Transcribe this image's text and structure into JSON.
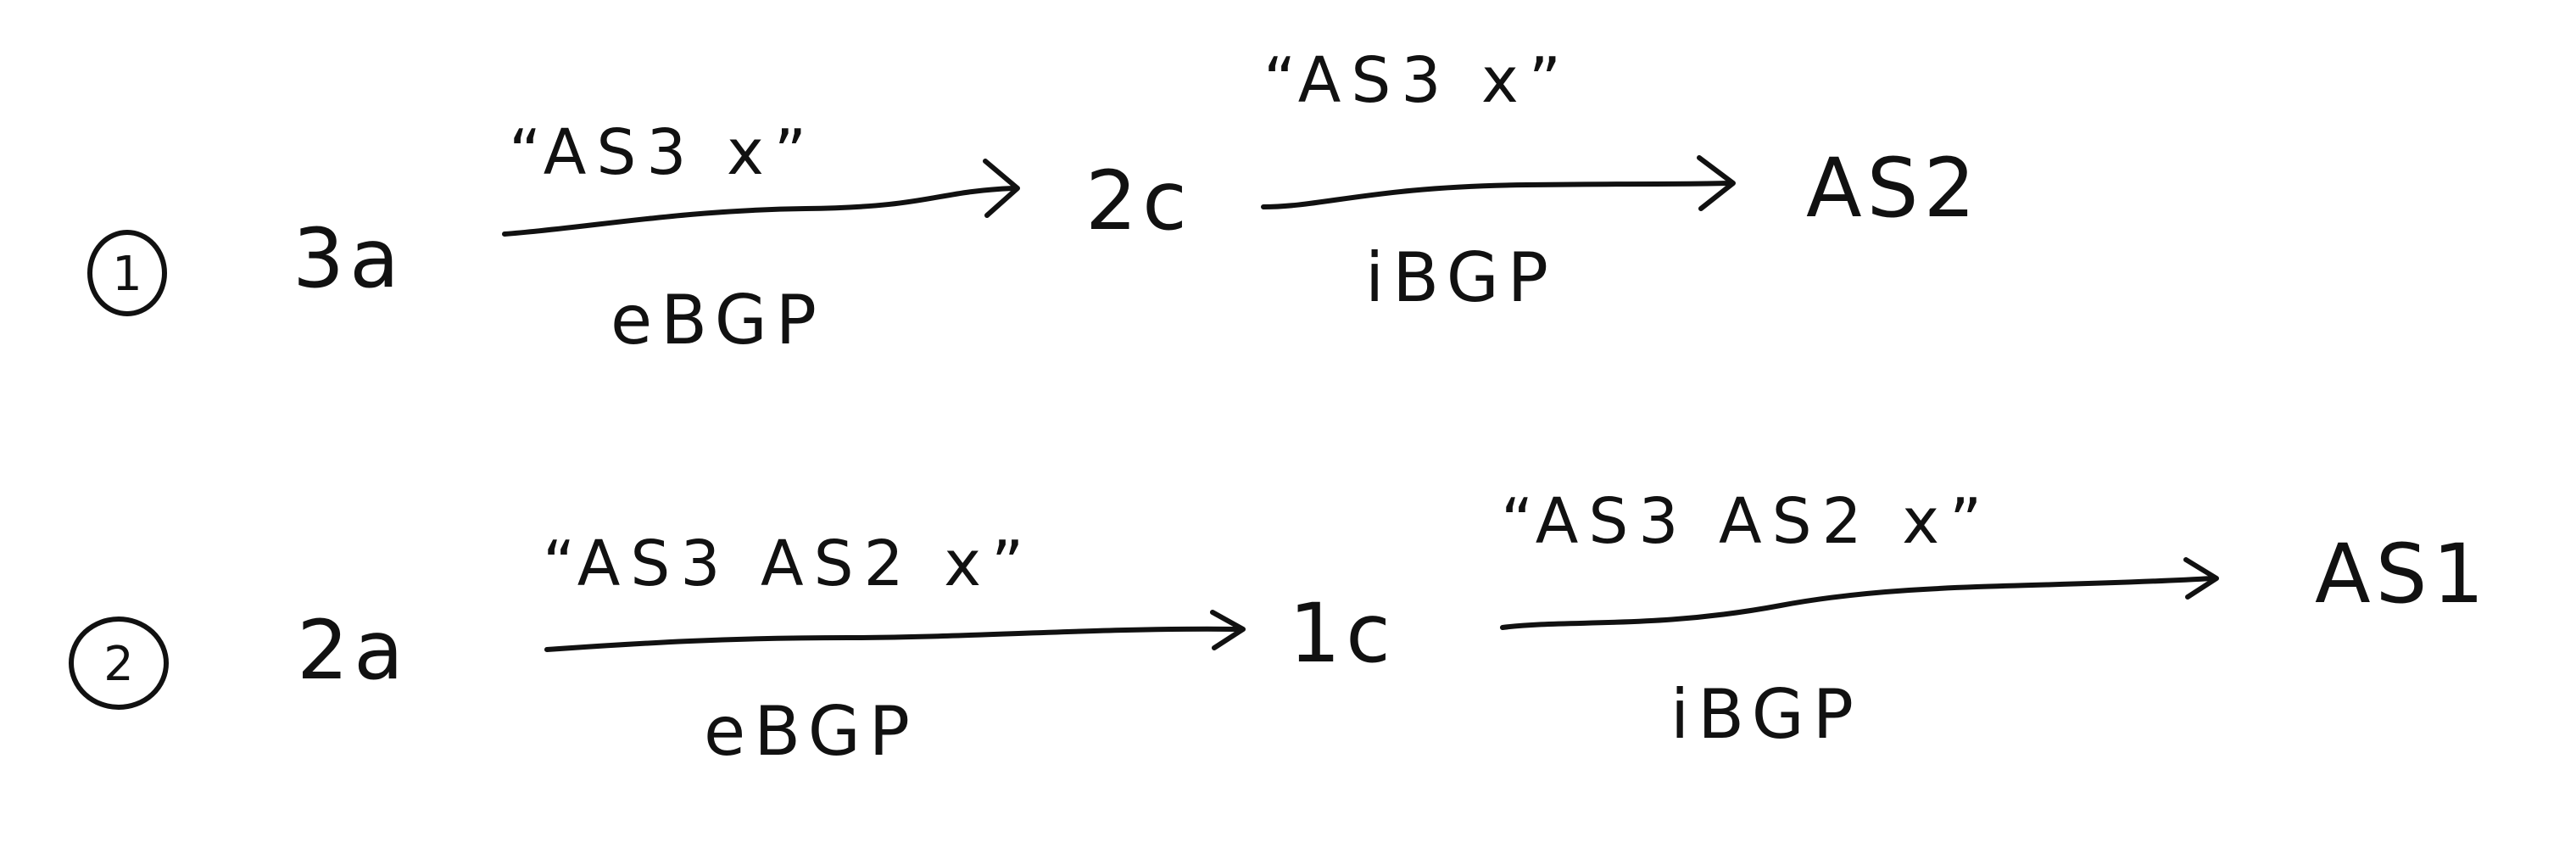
{
  "rows": [
    {
      "number": "1",
      "start": "3a",
      "links": [
        {
          "annotation": "“AS3  x”",
          "type": "eBGP"
        },
        {
          "annotation": "“AS3  x”",
          "type": "iBGP"
        }
      ],
      "middle": "2c",
      "end": "AS2"
    },
    {
      "number": "2",
      "start": "2a",
      "links": [
        {
          "annotation": "“AS3  AS2  x”",
          "type": "eBGP"
        },
        {
          "annotation": "“AS3  AS2  x”",
          "type": "iBGP"
        }
      ],
      "middle": "1c",
      "end": "AS1"
    }
  ]
}
